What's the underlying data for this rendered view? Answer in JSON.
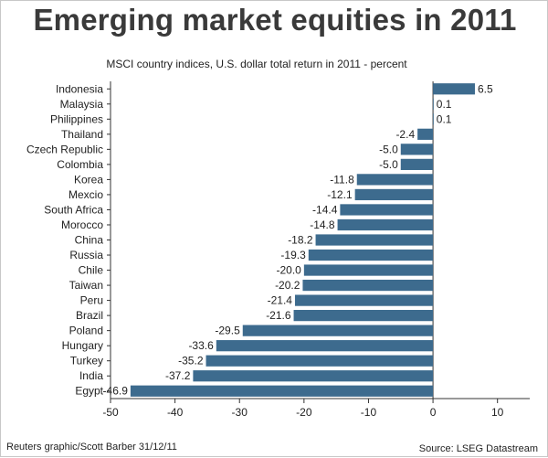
{
  "chart_data": {
    "type": "bar",
    "orientation": "horizontal",
    "title": "Emerging market equities in 2011",
    "subtitle": "MSCI country indices, U.S. dollar total return in 2011 - percent",
    "categories": [
      "Indonesia",
      "Malaysia",
      "Philippines",
      "Thailand",
      "Czech Republic",
      "Colombia",
      "Korea",
      "Mexcio",
      "South Africa",
      "Morocco",
      "China",
      "Russia",
      "Chile",
      "Taiwan",
      "Peru",
      "Brazil",
      "Poland",
      "Hungary",
      "Turkey",
      "India",
      "Egypt"
    ],
    "values": [
      6.5,
      0.1,
      0.1,
      -2.4,
      -5.0,
      -5.0,
      -11.8,
      -12.1,
      -14.4,
      -14.8,
      -18.2,
      -19.3,
      -20.0,
      -20.2,
      -21.4,
      -21.6,
      -29.5,
      -33.6,
      -35.2,
      -37.2,
      -46.9
    ],
    "value_labels": [
      "6.5",
      "0.1",
      "0.1",
      "-2.4",
      "-5.0",
      "-5.0",
      "-11.8",
      "-12.1",
      "-14.4",
      "-14.8",
      "-18.2",
      "-19.3",
      "-20.0",
      "-20.2",
      "-21.4",
      "-21.6",
      "-29.5",
      "-33.6",
      "-35.2",
      "-37.2",
      "-46.9"
    ],
    "xlim": [
      -50,
      15
    ],
    "xticks": [
      -50,
      -40,
      -30,
      -20,
      -10,
      0,
      10
    ],
    "xlabel": "",
    "ylabel": "",
    "grid": false,
    "bar_color": "#3d6b8e"
  },
  "footer": {
    "credit": "Reuters graphic/Scott Barber 31/12/11",
    "source": "Source: LSEG Datastream"
  }
}
